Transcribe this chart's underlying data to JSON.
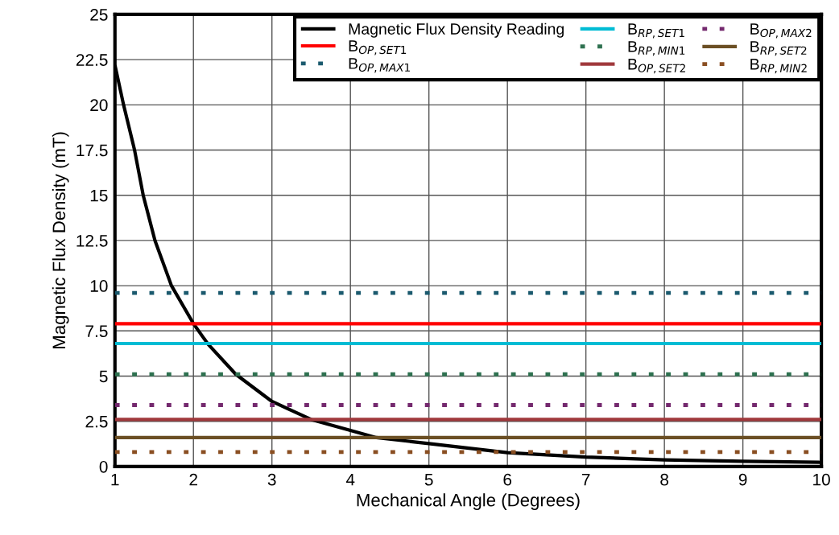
{
  "chart_data": {
    "type": "line",
    "xlabel": "Mechanical Angle (Degrees)",
    "ylabel": "Magnetic Flux Density (mT)",
    "xlim": [
      1,
      10
    ],
    "xticks": [
      1,
      2,
      3,
      4,
      5,
      6,
      7,
      8,
      9,
      10
    ],
    "ylim": [
      0,
      25
    ],
    "yticks": [
      0,
      2.5,
      5,
      7.5,
      10,
      12.5,
      15,
      17.5,
      20,
      22.5,
      25
    ],
    "grid": true,
    "legend": "top right",
    "marker": "none",
    "series": [
      {
        "name": "Magnetic Flux Density Reading",
        "color": "#000000",
        "line_style": "solid",
        "x": [
          1,
          1.11,
          1.25,
          1.36,
          1.51,
          1.72,
          2,
          2.18,
          2.54,
          3,
          3.5,
          4,
          4.33,
          5,
          6,
          7,
          8,
          9,
          10
        ],
        "values": [
          22.2,
          20,
          17.5,
          15,
          12.5,
          10,
          7.9,
          6.8,
          5.1,
          3.6,
          2.6,
          2.0,
          1.6,
          1.27,
          0.77,
          0.52,
          0.37,
          0.29,
          0.23
        ]
      },
      {
        "name": "B$_{OP,SET1}$",
        "color": "#ff0000",
        "line_style": "solid",
        "x": [
          1,
          10
        ],
        "values": [
          7.9,
          7.9
        ]
      },
      {
        "name": "B$_{OP,MAX1}$",
        "color": "#1b5a6e",
        "line_style": "dashed",
        "x": [
          1,
          10
        ],
        "values": [
          9.6,
          9.6
        ]
      },
      {
        "name": "B$_{RP,SET1}$",
        "color": "#00bcd4",
        "line_style": "solid",
        "x": [
          1,
          10
        ],
        "values": [
          6.8,
          6.8
        ]
      },
      {
        "name": "B$_{RP,MIN1}$",
        "color": "#2e7150",
        "line_style": "dashed",
        "x": [
          1,
          10
        ],
        "values": [
          5.1,
          5.1
        ]
      },
      {
        "name": "B$_{OP,SET2}$",
        "color": "#a0393c",
        "line_style": "solid",
        "x": [
          1,
          10
        ],
        "values": [
          2.6,
          2.6
        ]
      },
      {
        "name": "B$_{OP,MAX2}$",
        "color": "#74296e",
        "line_style": "dashed",
        "x": [
          1,
          10
        ],
        "values": [
          3.4,
          3.4
        ]
      },
      {
        "name": "B$_{RP,SET2}$",
        "color": "#6b4f24",
        "line_style": "solid",
        "x": [
          1,
          10
        ],
        "values": [
          1.6,
          1.6
        ]
      },
      {
        "name": "B$_{RP,MIN2}$",
        "color": "#8a4f22",
        "line_style": "dashed",
        "x": [
          1,
          10
        ],
        "values": [
          0.8,
          0.8
        ]
      }
    ]
  }
}
